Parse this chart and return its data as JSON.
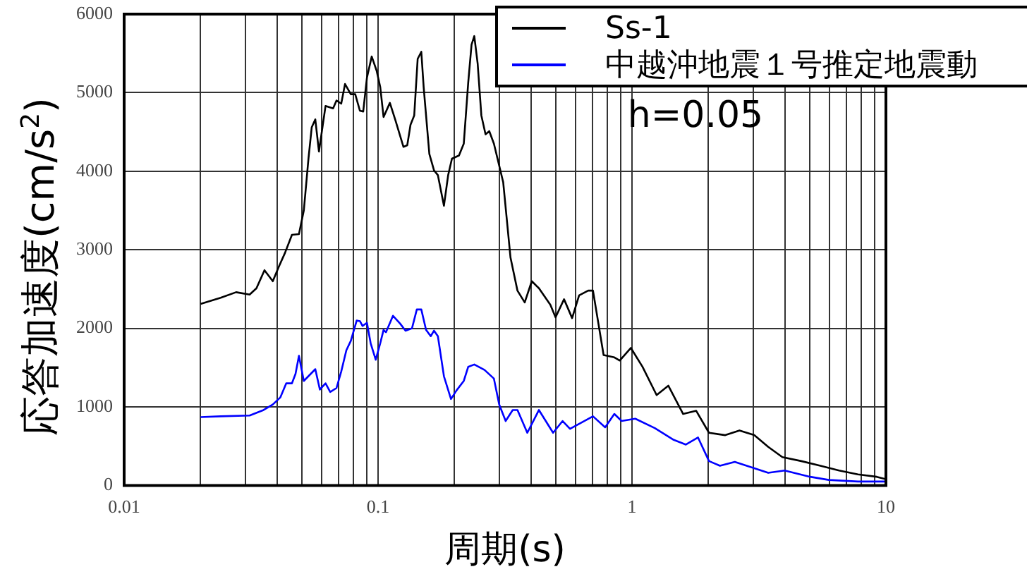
{
  "chart_data": {
    "type": "line",
    "xlabel": "周期(s)",
    "ylabel": "応答加速度(cm/s$^{2}$)",
    "log": "x",
    "grid": true,
    "legend": "top right",
    "marker": "none",
    "line_style": "solid",
    "xlim": [
      0.01,
      10
    ],
    "xticks": [
      0.01,
      {
        "value": 0.02,
        "label": null
      },
      {
        "value": 0.03,
        "label": null
      },
      {
        "value": 0.04,
        "label": null
      },
      {
        "value": 0.05,
        "label": null
      },
      {
        "value": 0.06,
        "label": null
      },
      {
        "value": 0.07,
        "label": null
      },
      {
        "value": 0.08,
        "label": null
      },
      {
        "value": 0.09,
        "label": null
      },
      0.1,
      {
        "value": 0.2,
        "label": null
      },
      {
        "value": 0.3,
        "label": null
      },
      {
        "value": 0.4,
        "label": null
      },
      {
        "value": 0.5,
        "label": null
      },
      {
        "value": 0.6,
        "label": null
      },
      {
        "value": 0.7,
        "label": null
      },
      {
        "value": 0.8,
        "label": null
      },
      {
        "value": 0.9,
        "label": null
      },
      1,
      {
        "value": 2,
        "label": null
      },
      {
        "value": 3,
        "label": null
      },
      {
        "value": 4,
        "label": null
      },
      {
        "value": 5,
        "label": null
      },
      {
        "value": 6,
        "label": null
      },
      {
        "value": 7,
        "label": null
      },
      {
        "value": 8,
        "label": null
      },
      {
        "value": 9,
        "label": null
      },
      10
    ],
    "ylim": [
      0,
      6000
    ],
    "yticks": [
      0,
      1000,
      2000,
      3000,
      4000,
      5000,
      6000
    ],
    "annotations": [
      "h=0.05"
    ],
    "series": [
      {
        "name": "Ss-1",
        "color": "#000000",
        "x": [
          0.02,
          0.024,
          0.0276,
          0.0312,
          0.0332,
          0.0357,
          0.0385,
          0.0406,
          0.043,
          0.0458,
          0.0488,
          0.051,
          0.0532,
          0.0548,
          0.0566,
          0.0585,
          0.0621,
          0.0665,
          0.0686,
          0.0716,
          0.0741,
          0.0781,
          0.0813,
          0.0848,
          0.0874,
          0.0904,
          0.0944,
          0.0987,
          0.102,
          0.1051,
          0.1113,
          0.117,
          0.1259,
          0.1303,
          0.1342,
          0.1388,
          0.1432,
          0.148,
          0.1512,
          0.1592,
          0.1661,
          0.172,
          0.1817,
          0.1888,
          0.1954,
          0.2083,
          0.2175,
          0.2265,
          0.2334,
          0.2393,
          0.2467,
          0.2551,
          0.265,
          0.2741,
          0.2859,
          0.311,
          0.3323,
          0.3539,
          0.378,
          0.403,
          0.43,
          0.477,
          0.5,
          0.54,
          0.581,
          0.619,
          0.672,
          0.702,
          0.773,
          0.852,
          0.895,
          0.99,
          1.1,
          1.25,
          1.39,
          1.59,
          1.79,
          2.01,
          2.33,
          2.65,
          3.03,
          3.44,
          3.91,
          4.64,
          5.52,
          6.54,
          7.76,
          9.2,
          10
        ],
        "values": [
          2310,
          2390,
          2460,
          2430,
          2510,
          2740,
          2600,
          2780,
          2960,
          3190,
          3200,
          3500,
          4160,
          4560,
          4660,
          4250,
          4830,
          4800,
          4900,
          4860,
          5110,
          4980,
          4980,
          4770,
          4760,
          5190,
          5460,
          5280,
          5070,
          4690,
          4870,
          4650,
          4310,
          4330,
          4590,
          4710,
          5430,
          5520,
          5070,
          4220,
          4010,
          3950,
          3560,
          3950,
          4160,
          4200,
          4350,
          5130,
          5610,
          5720,
          5370,
          4710,
          4470,
          4510,
          4350,
          3860,
          2900,
          2480,
          2330,
          2600,
          2510,
          2300,
          2140,
          2370,
          2130,
          2420,
          2480,
          2480,
          1660,
          1630,
          1590,
          1750,
          1510,
          1150,
          1270,
          910,
          950,
          670,
          640,
          700,
          640,
          490,
          360,
          310,
          250,
          190,
          140,
          110,
          80
        ]
      },
      {
        "name": "中越沖地震１号推定地震動",
        "color": "#0000ff",
        "x": [
          0.02,
          0.024,
          0.0312,
          0.0354,
          0.0385,
          0.0412,
          0.0435,
          0.0458,
          0.0473,
          0.0488,
          0.051,
          0.0566,
          0.059,
          0.0621,
          0.0648,
          0.0686,
          0.0716,
          0.075,
          0.0781,
          0.0824,
          0.0849,
          0.0869,
          0.0904,
          0.0935,
          0.0979,
          0.102,
          0.1051,
          0.1074,
          0.1145,
          0.1221,
          0.1283,
          0.136,
          0.1421,
          0.148,
          0.1545,
          0.1612,
          0.1661,
          0.172,
          0.1817,
          0.1937,
          0.2037,
          0.2175,
          0.2265,
          0.2393,
          0.2626,
          0.2859,
          0.3,
          0.318,
          0.339,
          0.354,
          0.387,
          0.43,
          0.489,
          0.533,
          0.57,
          0.702,
          0.784,
          0.852,
          0.91,
          1.03,
          1.23,
          1.46,
          1.63,
          1.82,
          2.01,
          2.22,
          2.54,
          3.03,
          3.44,
          3.99,
          5.03,
          5.96,
          7.76,
          10
        ],
        "values": [
          870,
          880,
          890,
          960,
          1030,
          1120,
          1300,
          1300,
          1420,
          1650,
          1330,
          1480,
          1220,
          1300,
          1190,
          1240,
          1450,
          1720,
          1840,
          2100,
          2090,
          2030,
          2070,
          1810,
          1600,
          1810,
          1980,
          1950,
          2160,
          2060,
          1970,
          2000,
          2240,
          2240,
          1980,
          1900,
          1970,
          1900,
          1390,
          1100,
          1210,
          1330,
          1510,
          1540,
          1470,
          1360,
          1030,
          820,
          960,
          960,
          670,
          960,
          670,
          820,
          720,
          880,
          740,
          910,
          820,
          850,
          730,
          580,
          520,
          610,
          310,
          250,
          300,
          220,
          160,
          190,
          110,
          70,
          50,
          50
        ]
      }
    ]
  }
}
